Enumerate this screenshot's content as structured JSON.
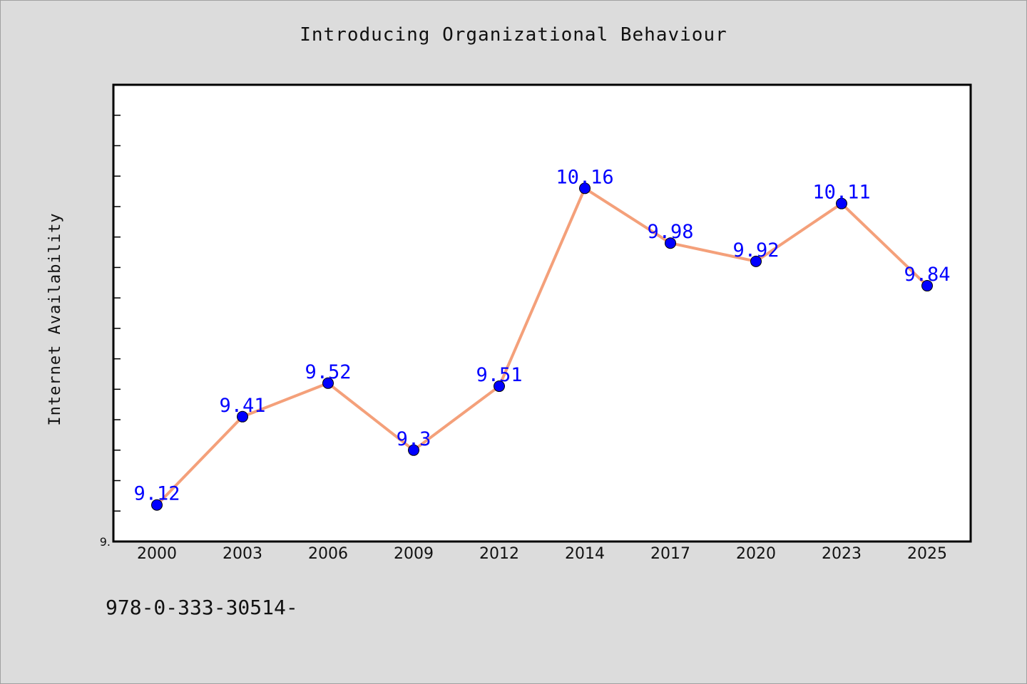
{
  "chart_data": {
    "type": "line",
    "title": "Introducing Organizational Behaviour",
    "xlabel": "",
    "ylabel": "Internet Availability",
    "categories": [
      "2000",
      "2003",
      "2006",
      "2009",
      "2012",
      "2014",
      "2017",
      "2020",
      "2023",
      "2025"
    ],
    "values": [
      9.12,
      9.41,
      9.52,
      9.3,
      9.51,
      10.16,
      9.98,
      9.92,
      10.11,
      9.84
    ],
    "data_labels": [
      "9.12",
      "9.41",
      "9.52",
      "9.3",
      "9.51",
      "10.16",
      "9.98",
      "9.92",
      "10.11",
      "9.84"
    ],
    "ylim": [
      9.0,
      10.5
    ],
    "y_tick_step": 0.1,
    "y_tick_labels": [
      {
        "value": 9.0,
        "label": "9."
      }
    ],
    "line_color": "#f4a07a",
    "marker_color": "#0000ff",
    "label_color": "#0000ff",
    "grid": false,
    "legend": "none"
  },
  "footer": {
    "text": "978-0-333-30514-"
  }
}
